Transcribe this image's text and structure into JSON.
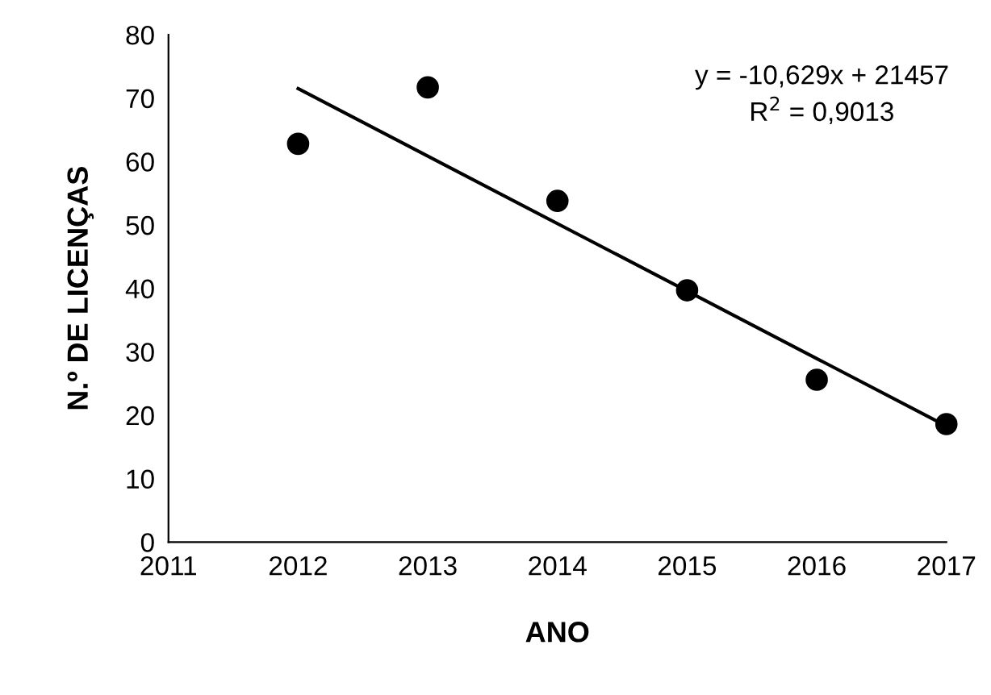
{
  "chart_data": {
    "type": "scatter",
    "xlabel": "ANO",
    "ylabel": "N.º DE LICENÇAS",
    "xlim": [
      2011,
      2017
    ],
    "xticks": [
      2011,
      2012,
      2013,
      2014,
      2015,
      2016,
      2017
    ],
    "ylim": [
      0,
      80
    ],
    "yticks": [
      0,
      10,
      20,
      30,
      40,
      50,
      60,
      70,
      80
    ],
    "grid": false,
    "legend": false,
    "series": [
      {
        "color": "#000000",
        "marker": "circle",
        "x": [
          2012,
          2013,
          2014,
          2015,
          2016,
          2017
        ],
        "values": [
          62.8,
          71.7,
          53.8,
          39.7,
          25.6,
          18.6
        ]
      },
      {
        "type": "line",
        "color": "#000000",
        "line_style": "solid",
        "x": [
          2012,
          2017
        ],
        "values": [
          71.5,
          18.3
        ]
      }
    ],
    "annotations": [
      "y = -10,629x + 21457\nR$^{2}$ = 0,9013"
    ]
  }
}
